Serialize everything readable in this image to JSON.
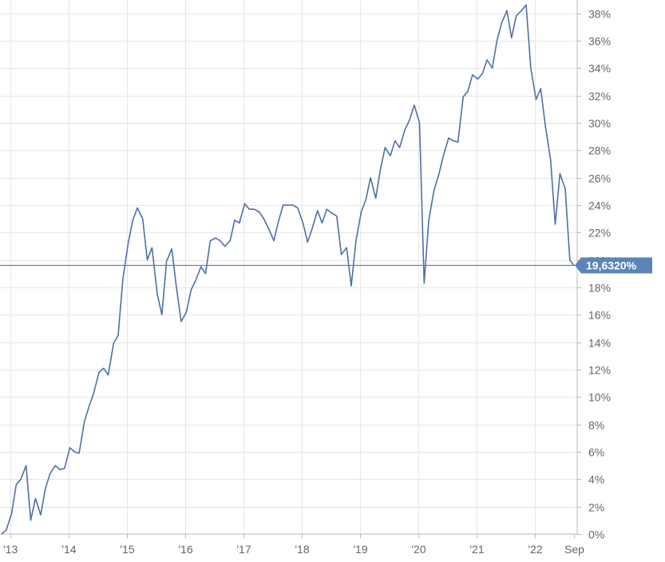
{
  "chart_data": {
    "type": "line",
    "ylim": [
      0,
      38.5
    ],
    "xlim": [
      2013.0,
      2022.96
    ],
    "y_ticks": [
      {
        "value": 0,
        "label": "0%"
      },
      {
        "value": 2,
        "label": "2%"
      },
      {
        "value": 4,
        "label": "4%"
      },
      {
        "value": 6,
        "label": "6%"
      },
      {
        "value": 8,
        "label": "8%"
      },
      {
        "value": 10,
        "label": "10%"
      },
      {
        "value": 12,
        "label": "12%"
      },
      {
        "value": 14,
        "label": "14%"
      },
      {
        "value": 16,
        "label": "16%"
      },
      {
        "value": 18,
        "label": "18%"
      },
      {
        "value": 20,
        "label": "20%"
      },
      {
        "value": 22,
        "label": "22%"
      },
      {
        "value": 24,
        "label": "24%"
      },
      {
        "value": 26,
        "label": "26%"
      },
      {
        "value": 28,
        "label": "28%"
      },
      {
        "value": 30,
        "label": "30%"
      },
      {
        "value": 32,
        "label": "32%"
      },
      {
        "value": 34,
        "label": "34%"
      },
      {
        "value": 36,
        "label": "36%"
      },
      {
        "value": 38,
        "label": "38%"
      }
    ],
    "x_ticks": [
      {
        "value": 2013.0,
        "label": "'13"
      },
      {
        "value": 2014.0,
        "label": "'14"
      },
      {
        "value": 2015.0,
        "label": "'15"
      },
      {
        "value": 2016.0,
        "label": "'16"
      },
      {
        "value": 2017.0,
        "label": "'17"
      },
      {
        "value": 2018.0,
        "label": "'18"
      },
      {
        "value": 2019.0,
        "label": "'19"
      },
      {
        "value": 2020.0,
        "label": "'20"
      },
      {
        "value": 2021.0,
        "label": "'21"
      },
      {
        "value": 2022.0,
        "label": "'22"
      },
      {
        "value": 2022.67,
        "label": "Sep"
      }
    ],
    "grid": true,
    "y_axis_side": "right",
    "last_value": 19.632,
    "last_value_label": "19,6320%",
    "colors": {
      "line": "#4f6fa8",
      "badge": "#5b84b8",
      "grid": "#e6e6e6"
    },
    "series": [
      {
        "x": [
          2012.85,
          2012.93,
          2013.02,
          2013.1,
          2013.18,
          2013.27,
          2013.35,
          2013.43,
          2013.52,
          2013.6,
          2013.68,
          2013.77,
          2013.85,
          2013.93,
          2014.02,
          2014.1,
          2014.18,
          2014.27,
          2014.35,
          2014.43,
          2014.52,
          2014.6,
          2014.68,
          2014.77,
          2014.85,
          2014.93,
          2015.02,
          2015.1,
          2015.18,
          2015.27,
          2015.35,
          2015.43,
          2015.52,
          2015.6,
          2015.68,
          2015.77,
          2015.85,
          2015.93,
          2016.02,
          2016.1,
          2016.18,
          2016.27,
          2016.35,
          2016.43,
          2016.52,
          2016.6,
          2016.68,
          2016.77,
          2016.85,
          2016.93,
          2017.02,
          2017.1,
          2017.18,
          2017.27,
          2017.35,
          2017.43,
          2017.52,
          2017.6,
          2017.68,
          2017.77,
          2017.85,
          2017.93,
          2018.02,
          2018.1,
          2018.18,
          2018.27,
          2018.35,
          2018.43,
          2018.52,
          2018.6,
          2018.68,
          2018.77,
          2018.85,
          2018.93,
          2019.02,
          2019.1,
          2019.18,
          2019.27,
          2019.35,
          2019.43,
          2019.52,
          2019.6,
          2019.68,
          2019.77,
          2019.85,
          2019.93,
          2020.02,
          2020.1,
          2020.18,
          2020.27,
          2020.35,
          2020.43,
          2020.52,
          2020.6,
          2020.68,
          2020.77,
          2020.85,
          2020.93,
          2021.02,
          2021.1,
          2021.18,
          2021.27,
          2021.35,
          2021.43,
          2021.52,
          2021.6,
          2021.68,
          2021.77,
          2021.85,
          2021.93,
          2022.02,
          2022.1,
          2022.18,
          2022.27,
          2022.35,
          2022.43,
          2022.52,
          2022.6,
          2022.67
        ],
        "y": [
          0.0,
          0.3,
          1.5,
          3.6,
          4.0,
          5.0,
          1.0,
          2.6,
          1.4,
          3.3,
          4.4,
          5.0,
          4.7,
          4.8,
          6.3,
          6.0,
          5.9,
          8.2,
          9.3,
          10.3,
          11.8,
          12.1,
          11.6,
          13.9,
          14.5,
          18.6,
          21.2,
          22.9,
          23.8,
          23.0,
          20.0,
          20.9,
          17.5,
          16.0,
          19.9,
          20.8,
          18.0,
          15.5,
          16.2,
          17.8,
          18.5,
          19.5,
          19.0,
          21.4,
          21.6,
          21.4,
          21.0,
          21.4,
          22.9,
          22.7,
          24.1,
          23.7,
          23.7,
          23.5,
          23.0,
          22.3,
          21.4,
          22.8,
          24.0,
          24.0,
          24.0,
          23.8,
          22.7,
          21.3,
          22.3,
          23.6,
          22.7,
          23.7,
          23.4,
          23.2,
          20.4,
          20.9,
          18.1,
          21.4,
          23.5,
          24.4,
          26.0,
          24.5,
          26.6,
          28.2,
          27.6,
          28.7,
          28.2,
          29.5,
          30.2,
          31.3,
          30.0,
          18.3,
          22.9,
          25.1,
          26.2,
          27.6,
          28.9,
          28.7,
          28.6,
          31.9,
          32.3,
          33.5,
          33.2,
          33.6,
          34.6,
          34.0,
          36.0,
          37.3,
          38.2,
          36.2,
          37.8,
          38.2,
          38.6,
          34.0,
          31.7,
          32.5,
          29.8,
          27.3,
          22.6,
          26.3,
          25.2,
          20.0,
          19.6
        ]
      }
    ]
  }
}
